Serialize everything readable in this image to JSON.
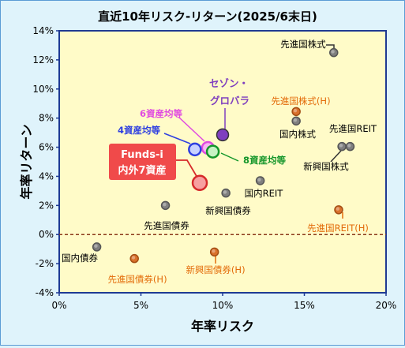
{
  "chart_data": {
    "type": "scatter",
    "title": "直近10年リスク-リターン(2025/6末日)",
    "xlabel": "年率リスク",
    "ylabel": "年率リターン",
    "xlim": [
      0,
      20
    ],
    "ylim": [
      -4,
      14
    ],
    "xticks": [
      0,
      5,
      10,
      15,
      20
    ],
    "yticks": [
      -4,
      -2,
      0,
      2,
      4,
      6,
      8,
      10,
      12,
      14
    ],
    "xtick_labels": [
      "0%",
      "5%",
      "10%",
      "15%",
      "20%"
    ],
    "ytick_labels": [
      "-4%",
      "-2%",
      "0%",
      "2%",
      "4%",
      "6%",
      "8%",
      "10%",
      "12%",
      "14%"
    ],
    "grid": false,
    "zero_line": true,
    "colors": {
      "plot_bg": "#fffbc8",
      "page_bg": "#dff3fb",
      "axis": "#1f3a93",
      "gray": "#7f7f7f",
      "orange": "#d9712b",
      "orange_label": "#e36c0a",
      "blue": "#2e3fe0",
      "magenta": "#e04ae0",
      "green": "#14962a",
      "purple": "#7f3fbf",
      "red": "#f04a4a",
      "zero_line": "#8b3a1a"
    },
    "points": [
      {
        "label": "先進国株式",
        "x": 16.8,
        "y": 12.5,
        "group": "gray"
      },
      {
        "label": "先進国株式(H)",
        "x": 14.5,
        "y": 8.45,
        "group": "orange"
      },
      {
        "label": "国内株式",
        "x": 14.5,
        "y": 7.8,
        "group": "gray"
      },
      {
        "label": "先進国REIT",
        "x": 17.8,
        "y": 6.05,
        "group": "gray"
      },
      {
        "label": "新興国株式",
        "x": 17.3,
        "y": 6.05,
        "group": "gray"
      },
      {
        "label": "国内REIT",
        "x": 12.3,
        "y": 3.7,
        "group": "gray"
      },
      {
        "label": "新興国債券",
        "x": 10.2,
        "y": 2.85,
        "group": "gray"
      },
      {
        "label": "先進国債券",
        "x": 6.5,
        "y": 2.0,
        "group": "gray"
      },
      {
        "label": "先進国REIT(H)",
        "x": 17.1,
        "y": 1.7,
        "group": "orange"
      },
      {
        "label": "国内債券",
        "x": 2.3,
        "y": -0.85,
        "group": "gray"
      },
      {
        "label": "新興国債券(H)",
        "x": 9.5,
        "y": -1.2,
        "group": "orange"
      },
      {
        "label": "先進国債券(H)",
        "x": 4.6,
        "y": -1.65,
        "group": "orange"
      },
      {
        "label": "セゾン・グロバラ",
        "x": 10.0,
        "y": 6.85,
        "group": "purple"
      },
      {
        "label": "6資産均等",
        "x": 9.1,
        "y": 5.95,
        "group": "magenta"
      },
      {
        "label": "4資産均等",
        "x": 8.3,
        "y": 5.85,
        "group": "blue"
      },
      {
        "label": "8資産均等",
        "x": 9.4,
        "y": 5.7,
        "group": "green"
      },
      {
        "label": "Funds-i 内外7資産",
        "x": 8.6,
        "y": 3.55,
        "group": "red"
      }
    ]
  },
  "labels": {
    "sezon_line1": "セゾン・",
    "sezon_line2": "グロバラ",
    "funds_line1": "Funds-i",
    "funds_line2": "内外7資産"
  }
}
